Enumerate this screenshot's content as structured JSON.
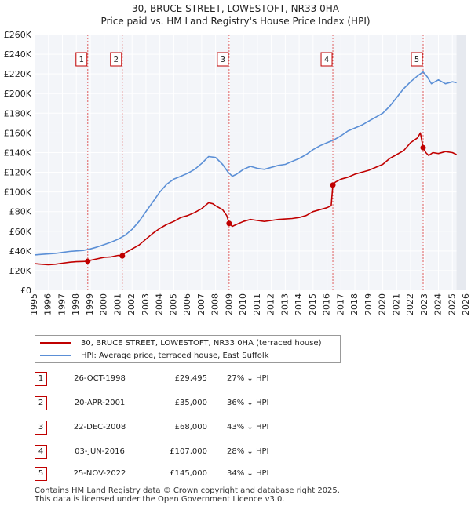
{
  "title_line1": "30, BRUCE STREET, LOWESTOFT, NR33 0HA",
  "title_line2": "Price paid vs. HM Land Registry's House Price Index (HPI)",
  "chart_data": {
    "type": "line",
    "xlim": [
      1995,
      2026
    ],
    "ylim": [
      0,
      260000
    ],
    "x_ticks": [
      1995,
      1996,
      1997,
      1998,
      1999,
      2000,
      2001,
      2002,
      2003,
      2004,
      2005,
      2006,
      2007,
      2008,
      2009,
      2010,
      2011,
      2012,
      2013,
      2014,
      2015,
      2016,
      2017,
      2018,
      2019,
      2020,
      2021,
      2022,
      2023,
      2024,
      2025,
      2026
    ],
    "y_ticks": [
      {
        "value": 0,
        "label": "£0"
      },
      {
        "value": 20000,
        "label": "£20K"
      },
      {
        "value": 40000,
        "label": "£40K"
      },
      {
        "value": 60000,
        "label": "£60K"
      },
      {
        "value": 80000,
        "label": "£80K"
      },
      {
        "value": 100000,
        "label": "£100K"
      },
      {
        "value": 120000,
        "label": "£120K"
      },
      {
        "value": 140000,
        "label": "£140K"
      },
      {
        "value": 160000,
        "label": "£160K"
      },
      {
        "value": 180000,
        "label": "£180K"
      },
      {
        "value": 200000,
        "label": "£200K"
      },
      {
        "value": 220000,
        "label": "£220K"
      },
      {
        "value": 240000,
        "label": "£240K"
      },
      {
        "value": 260000,
        "label": "£260K"
      }
    ],
    "grid": true,
    "series": [
      {
        "name": "30, BRUCE STREET, LOWESTOFT, NR33 0HA (terraced house)",
        "color": "#c00000",
        "x": [
          1995.0,
          1995.5,
          1996.0,
          1996.5,
          1997.0,
          1997.5,
          1998.0,
          1998.5,
          1998.82,
          1999.0,
          1999.5,
          2000.0,
          2000.5,
          2001.0,
          2001.3,
          2001.5,
          2002.0,
          2002.5,
          2003.0,
          2003.5,
          2004.0,
          2004.5,
          2005.0,
          2005.5,
          2006.0,
          2006.5,
          2007.0,
          2007.5,
          2007.8,
          2008.0,
          2008.5,
          2008.8,
          2008.97,
          2009.2,
          2009.5,
          2010.0,
          2010.5,
          2011.0,
          2011.5,
          2012.0,
          2012.5,
          2013.0,
          2013.5,
          2014.0,
          2014.5,
          2015.0,
          2015.5,
          2016.0,
          2016.3,
          2016.42,
          2016.6,
          2017.0,
          2017.5,
          2018.0,
          2018.5,
          2019.0,
          2019.5,
          2020.0,
          2020.5,
          2021.0,
          2021.5,
          2022.0,
          2022.5,
          2022.7,
          2022.9,
          2023.1,
          2023.3,
          2023.6,
          2024.0,
          2024.5,
          2025.0,
          2025.3
        ],
        "values": [
          27000,
          26500,
          26000,
          26500,
          27500,
          28500,
          29000,
          29300,
          29495,
          30500,
          32000,
          33500,
          34000,
          35500,
          35000,
          38000,
          42000,
          46000,
          52000,
          58000,
          63000,
          67000,
          70000,
          74000,
          76000,
          79000,
          83000,
          89000,
          88000,
          86000,
          82000,
          76000,
          68000,
          65000,
          67000,
          70000,
          72000,
          71000,
          70000,
          71000,
          72000,
          72500,
          73000,
          74000,
          76000,
          80000,
          82000,
          84000,
          86000,
          107000,
          110000,
          113000,
          115000,
          118000,
          120000,
          122000,
          125000,
          128000,
          134000,
          138000,
          142000,
          150000,
          155000,
          160000,
          145000,
          140000,
          137000,
          140000,
          139000,
          141000,
          140000,
          138000
        ]
      },
      {
        "name": "HPI: Average price, terraced house, East Suffolk",
        "color": "#5b8fd6",
        "x": [
          1995.0,
          1995.5,
          1996.0,
          1996.5,
          1997.0,
          1997.5,
          1998.0,
          1998.5,
          1999.0,
          1999.5,
          2000.0,
          2000.5,
          2001.0,
          2001.5,
          2002.0,
          2002.5,
          2003.0,
          2003.5,
          2004.0,
          2004.5,
          2005.0,
          2005.5,
          2006.0,
          2006.5,
          2007.0,
          2007.5,
          2008.0,
          2008.5,
          2008.9,
          2009.2,
          2009.5,
          2010.0,
          2010.5,
          2011.0,
          2011.5,
          2012.0,
          2012.5,
          2013.0,
          2013.5,
          2014.0,
          2014.5,
          2015.0,
          2015.5,
          2016.0,
          2016.5,
          2017.0,
          2017.5,
          2018.0,
          2018.5,
          2019.0,
          2019.5,
          2020.0,
          2020.5,
          2021.0,
          2021.5,
          2022.0,
          2022.5,
          2022.9,
          2023.2,
          2023.5,
          2024.0,
          2024.5,
          2025.0,
          2025.3
        ],
        "values": [
          36000,
          36500,
          37000,
          37500,
          38500,
          39500,
          40000,
          40500,
          42000,
          44000,
          46500,
          49000,
          52000,
          56000,
          62000,
          70000,
          80000,
          90000,
          100000,
          108000,
          113000,
          116000,
          119000,
          123000,
          129000,
          136000,
          135000,
          128000,
          120000,
          116000,
          118000,
          123000,
          126000,
          124000,
          123000,
          125000,
          127000,
          128000,
          131000,
          134000,
          138000,
          143000,
          147000,
          150000,
          153000,
          157000,
          162000,
          165000,
          168000,
          172000,
          176000,
          180000,
          187000,
          196000,
          205000,
          212000,
          218000,
          222000,
          217000,
          210000,
          214000,
          210000,
          212000,
          211000
        ]
      }
    ],
    "sales": [
      {
        "id": "1",
        "x": 1998.82,
        "value": 29495
      },
      {
        "id": "2",
        "x": 2001.3,
        "value": 35000
      },
      {
        "id": "3",
        "x": 2008.97,
        "value": 68000
      },
      {
        "id": "4",
        "x": 2016.42,
        "value": 107000
      },
      {
        "id": "5",
        "x": 2022.9,
        "value": 145000
      }
    ]
  },
  "legend": {
    "property": "30, BRUCE STREET, LOWESTOFT, NR33 0HA (terraced house)",
    "hpi": "HPI: Average price, terraced house, East Suffolk"
  },
  "transactions": [
    {
      "num": "1",
      "date": "26-OCT-1998",
      "price": "£29,495",
      "hpi": "27% ↓ HPI"
    },
    {
      "num": "2",
      "date": "20-APR-2001",
      "price": "£35,000",
      "hpi": "36% ↓ HPI"
    },
    {
      "num": "3",
      "date": "22-DEC-2008",
      "price": "£68,000",
      "hpi": "43% ↓ HPI"
    },
    {
      "num": "4",
      "date": "03-JUN-2016",
      "price": "£107,000",
      "hpi": "28% ↓ HPI"
    },
    {
      "num": "5",
      "date": "25-NOV-2022",
      "price": "£145,000",
      "hpi": "34% ↓ HPI"
    }
  ],
  "footer": {
    "line1": "Contains HM Land Registry data © Crown copyright and database right 2025.",
    "line2": "This data is licensed under the Open Government Licence v3.0."
  }
}
